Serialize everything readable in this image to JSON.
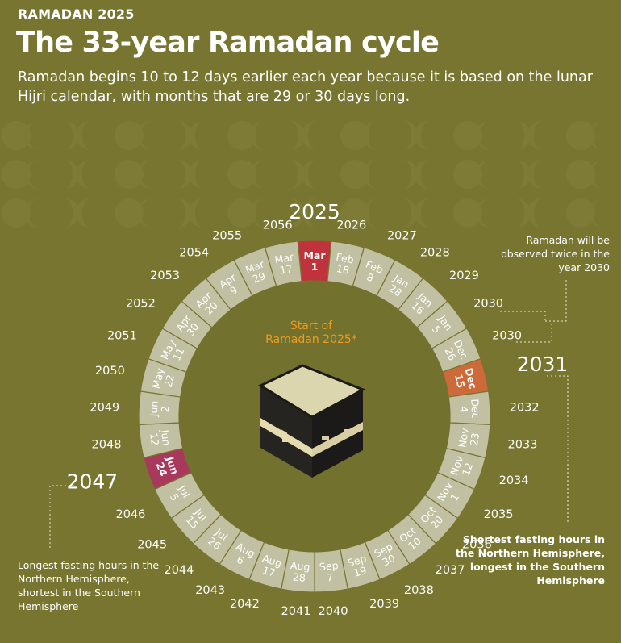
{
  "header": {
    "kicker": "RAMADAN 2025",
    "title": "The 33-year Ramadan cycle",
    "subtitle": "Ramadan begins 10 to 12 days earlier each year because it is based on the lunar Hijri calendar, with months that are 29 or 30 days long."
  },
  "center": {
    "label_line1": "Start of",
    "label_line2": "Ramadan 2025*",
    "label_color": "#f09a1e",
    "icon": "kaaba-icon"
  },
  "colors": {
    "background": "#777530",
    "segment": "#c2c0a2",
    "segment_text": "#ffffff",
    "current_start": "#c0323c",
    "double_year": "#cd6a3a",
    "summer_solstice": "#a8385c",
    "inner_disc": "#6c6a2a"
  },
  "notes": {
    "twice_2030": "Ramadan will be observed twice in the year 2030",
    "dec_2031": "Shortest fasting hours in the Northern Hemisphere, longest in the Southern Hemisphere",
    "jun_2047": "Longest fasting hours in the Northern Hemisphere, shortest in the Southern Hemisphere"
  },
  "chart_data": {
    "type": "radial-timeline",
    "entries": [
      {
        "year": "2025",
        "month": "Mar",
        "day": "1",
        "highlight": "start"
      },
      {
        "year": "2026",
        "month": "Feb",
        "day": "18"
      },
      {
        "year": "2027",
        "month": "Feb",
        "day": "8"
      },
      {
        "year": "2028",
        "month": "Jan",
        "day": "28"
      },
      {
        "year": "2029",
        "month": "Jan",
        "day": "16"
      },
      {
        "year": "2030",
        "month": "Jan",
        "day": "5"
      },
      {
        "year": "2030",
        "month": "Dec",
        "day": "26"
      },
      {
        "year": "2031",
        "month": "Dec",
        "day": "15",
        "highlight": "shortest-north"
      },
      {
        "year": "2032",
        "month": "Dec",
        "day": "4"
      },
      {
        "year": "2033",
        "month": "Nov",
        "day": "23"
      },
      {
        "year": "2034",
        "month": "Nov",
        "day": "12"
      },
      {
        "year": "2035",
        "month": "Nov",
        "day": "1"
      },
      {
        "year": "2036",
        "month": "Oct",
        "day": "20"
      },
      {
        "year": "2037",
        "month": "Oct",
        "day": "10"
      },
      {
        "year": "2038",
        "month": "Sep",
        "day": "30"
      },
      {
        "year": "2039",
        "month": "Sep",
        "day": "19"
      },
      {
        "year": "2040",
        "month": "Sep",
        "day": "7"
      },
      {
        "year": "2041",
        "month": "Aug",
        "day": "28"
      },
      {
        "year": "2042",
        "month": "Aug",
        "day": "17"
      },
      {
        "year": "2043",
        "month": "Aug",
        "day": "6"
      },
      {
        "year": "2044",
        "month": "Jul",
        "day": "26"
      },
      {
        "year": "2045",
        "month": "Jul",
        "day": "15"
      },
      {
        "year": "2046",
        "month": "Jul",
        "day": "5"
      },
      {
        "year": "2047",
        "month": "Jun",
        "day": "24",
        "highlight": "longest-north"
      },
      {
        "year": "2048",
        "month": "Jun",
        "day": "12"
      },
      {
        "year": "2049",
        "month": "Jun",
        "day": "2"
      },
      {
        "year": "2050",
        "month": "May",
        "day": "22"
      },
      {
        "year": "2051",
        "month": "May",
        "day": "11"
      },
      {
        "year": "2052",
        "month": "Apr",
        "day": "30"
      },
      {
        "year": "2053",
        "month": "Apr",
        "day": "20"
      },
      {
        "year": "2054",
        "month": "Apr",
        "day": "9"
      },
      {
        "year": "2055",
        "month": "Mar",
        "day": "29"
      },
      {
        "year": "2056",
        "month": "Mar",
        "day": "17"
      }
    ]
  }
}
